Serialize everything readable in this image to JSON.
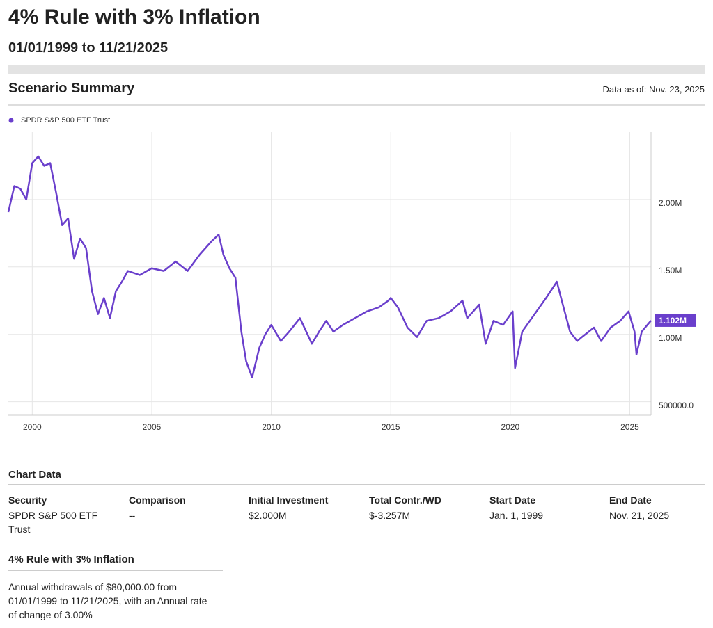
{
  "header": {
    "title": "4% Rule with 3% Inflation",
    "subtitle": "01/01/1999 to 11/21/2025"
  },
  "summary": {
    "heading": "Scenario Summary",
    "as_of": "Data as of: Nov. 23, 2025"
  },
  "chart_data": {
    "type": "line",
    "x": [
      1999.0,
      1999.25,
      1999.5,
      1999.75,
      2000.0,
      2000.25,
      2000.5,
      2000.75,
      2001.0,
      2001.25,
      2001.5,
      2001.75,
      2002.0,
      2002.25,
      2002.5,
      2002.75,
      2003.0,
      2003.25,
      2003.5,
      2003.75,
      2004.0,
      2004.5,
      2005.0,
      2005.5,
      2006.0,
      2006.5,
      2007.0,
      2007.5,
      2007.8,
      2008.0,
      2008.25,
      2008.5,
      2008.75,
      2008.95,
      2009.2,
      2009.5,
      2009.75,
      2010.0,
      2010.4,
      2010.75,
      2011.2,
      2011.7,
      2012.0,
      2012.3,
      2012.6,
      2013.0,
      2013.5,
      2014.0,
      2014.5,
      2014.9,
      2015.0,
      2015.3,
      2015.7,
      2016.1,
      2016.5,
      2017.0,
      2017.5,
      2018.0,
      2018.2,
      2018.7,
      2018.97,
      2019.3,
      2019.7,
      2020.1,
      2020.2,
      2020.5,
      2020.9,
      2021.5,
      2021.95,
      2022.2,
      2022.5,
      2022.8,
      2023.0,
      2023.5,
      2023.8,
      2024.2,
      2024.6,
      2024.95,
      2025.2,
      2025.28,
      2025.5,
      2025.89
    ],
    "series": [
      {
        "name": "SPDR S&P 500 ETF Trust",
        "color": "#6a3fcc",
        "values": [
          1907000,
          2100000,
          2080000,
          2000000,
          2270000,
          2320000,
          2250000,
          2270000,
          2050000,
          1810000,
          1860000,
          1560000,
          1710000,
          1640000,
          1320000,
          1150000,
          1270000,
          1120000,
          1320000,
          1390000,
          1470000,
          1440000,
          1490000,
          1470000,
          1540000,
          1470000,
          1590000,
          1690000,
          1740000,
          1590000,
          1490000,
          1420000,
          1020000,
          800000,
          680000,
          900000,
          1000000,
          1070000,
          950000,
          1020000,
          1120000,
          930000,
          1020000,
          1100000,
          1020000,
          1070000,
          1120000,
          1170000,
          1200000,
          1250000,
          1270000,
          1200000,
          1050000,
          980000,
          1100000,
          1120000,
          1170000,
          1250000,
          1120000,
          1220000,
          930000,
          1100000,
          1070000,
          1170000,
          750000,
          1020000,
          1120000,
          1270000,
          1390000,
          1220000,
          1020000,
          950000,
          980000,
          1050000,
          950000,
          1050000,
          1100000,
          1170000,
          1020000,
          850000,
          1020000,
          1102000
        ],
        "value_labels": [
          null,
          null,
          null,
          null,
          null,
          null,
          null,
          null,
          null,
          null,
          null,
          null,
          null,
          null,
          null,
          null,
          null,
          null,
          null,
          null,
          null,
          null,
          null,
          null,
          null,
          null,
          null,
          null,
          null,
          null,
          null,
          null,
          null,
          null,
          null,
          null,
          null,
          null,
          null,
          null,
          null,
          null,
          null,
          null,
          null,
          null,
          null,
          null,
          null,
          null,
          null,
          null,
          null,
          null,
          null,
          null,
          null,
          null,
          null,
          null,
          null,
          null,
          null,
          null,
          null,
          null,
          null,
          null,
          null,
          null,
          null,
          null,
          null,
          null,
          null,
          null,
          null,
          null,
          null,
          null,
          null,
          "1.102M"
        ]
      }
    ],
    "xlim": [
      1999.0,
      2025.89
    ],
    "xticks": [
      2000,
      2005,
      2010,
      2015,
      2020,
      2025
    ],
    "ylim": [
      400000,
      2500000
    ],
    "yticks": [
      {
        "value": 500000,
        "label": "500000.0"
      },
      {
        "value": 1000000,
        "label": "1.00M"
      },
      {
        "value": 1500000,
        "label": "1.50M"
      },
      {
        "value": 2000000,
        "label": "2.00M"
      }
    ],
    "grid": true,
    "legend": "top-left"
  },
  "table": {
    "heading": "Chart Data",
    "columns": [
      "Security",
      "Comparison",
      "Initial Investment",
      "Total Contr./WD",
      "Start Date",
      "End Date"
    ],
    "row": [
      "SPDR S&P 500 ETF Trust",
      "--",
      "$2.000M",
      "$-3.257M",
      "Jan. 1, 1999",
      "Nov. 21, 2025"
    ]
  },
  "rule": {
    "heading": "4% Rule with 3% Inflation",
    "text": "Annual withdrawals of $80,000.00 from 01/01/1999 to 11/21/2025, with an Annual rate of change of 3.00%"
  }
}
